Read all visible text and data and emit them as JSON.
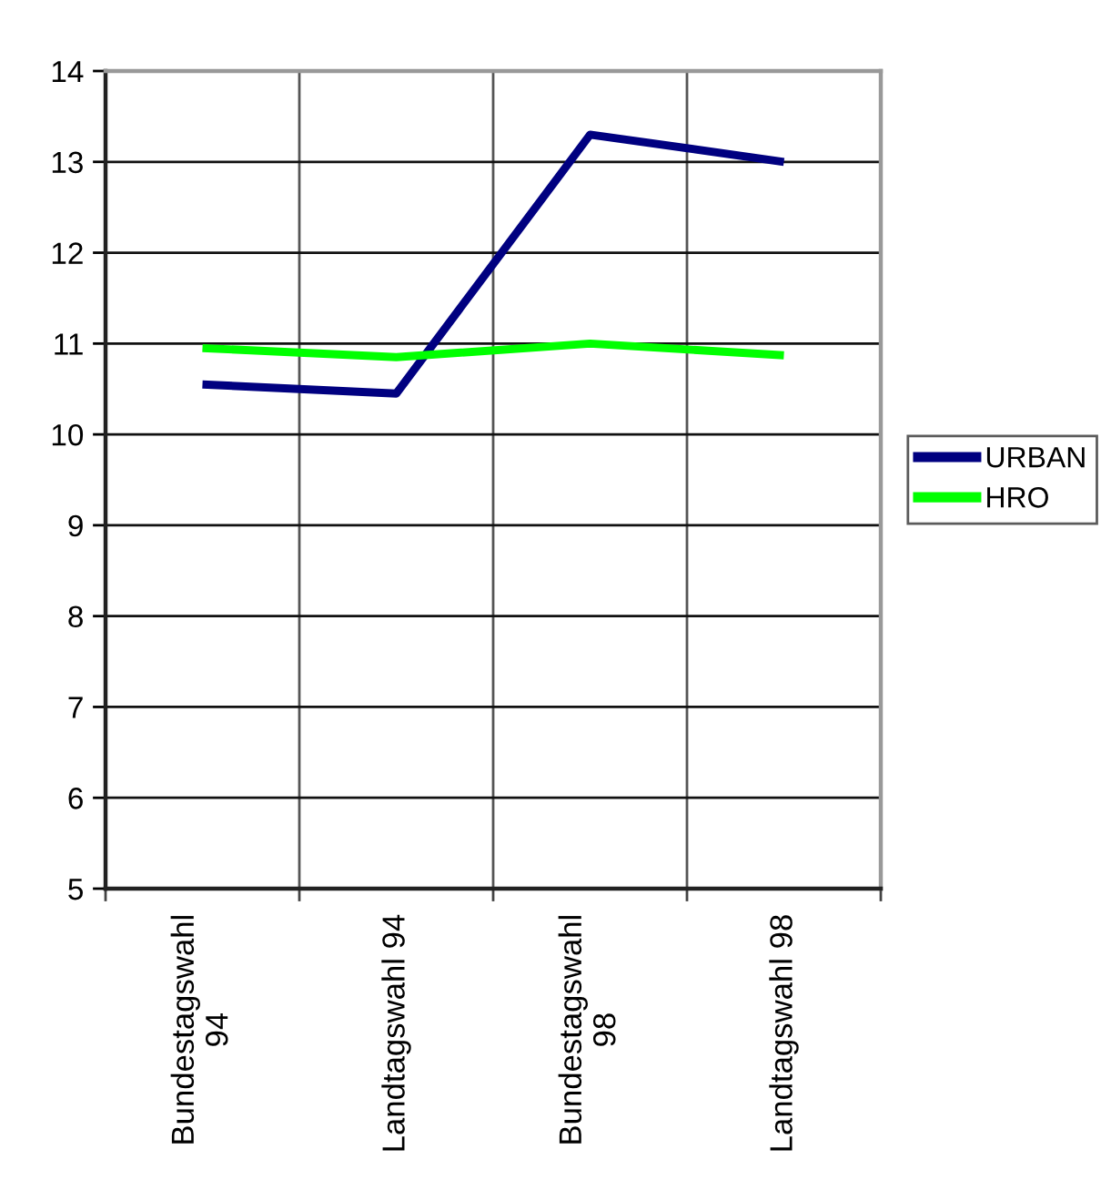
{
  "chart_data": {
    "type": "line",
    "categories": [
      "Bundestagswahl\n94",
      "Landtagswahl 94",
      "Bundestagswahl\n98",
      "Landtagswahl 98"
    ],
    "series": [
      {
        "name": "URBAN",
        "color": "#000080",
        "values": [
          10.55,
          10.45,
          13.3,
          13.0
        ]
      },
      {
        "name": "HRO",
        "color": "#00ff00",
        "values": [
          10.95,
          10.85,
          11.0,
          10.87
        ]
      }
    ],
    "ylim": [
      5,
      14
    ],
    "yticks": [
      5,
      6,
      7,
      8,
      9,
      10,
      11,
      12,
      13,
      14
    ],
    "grid": true,
    "legend": "right"
  }
}
